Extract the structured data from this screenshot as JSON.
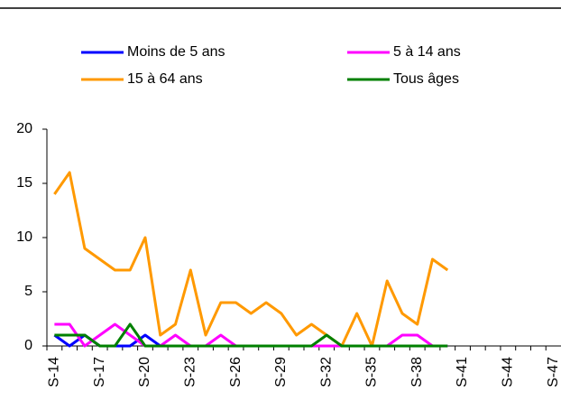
{
  "chart_data": {
    "type": "line",
    "categories": [
      "S-14",
      null,
      null,
      "S-17",
      null,
      null,
      "S-20",
      null,
      null,
      "S-23",
      null,
      null,
      "S-26",
      null,
      null,
      "S-29",
      null,
      null,
      "S-32",
      null,
      null,
      "S-35",
      null,
      null,
      "S-38",
      null,
      null,
      "S-41",
      null,
      null,
      "S-44",
      null,
      null,
      "S-47"
    ],
    "series": [
      {
        "name": "Moins de 5 ans",
        "color": "#0000ff",
        "values": [
          1,
          0,
          1,
          0,
          0,
          0,
          1,
          0,
          0,
          0,
          0,
          0,
          0,
          0,
          0,
          0,
          0,
          0,
          0,
          0,
          0,
          0,
          0,
          0,
          0,
          0,
          0,
          null,
          null,
          null,
          null,
          null,
          null,
          null
        ]
      },
      {
        "name": "5 à 14 ans",
        "color": "#ff00ff",
        "values": [
          2,
          2,
          0,
          1,
          2,
          1,
          0,
          0,
          1,
          0,
          0,
          1,
          0,
          0,
          0,
          0,
          0,
          0,
          0,
          0,
          0,
          0,
          0,
          1,
          1,
          0,
          0,
          null,
          null,
          null,
          null,
          null,
          null,
          null
        ]
      },
      {
        "name": "15 à 64 ans",
        "color": "#ff9900",
        "values": [
          14,
          16,
          9,
          8,
          7,
          7,
          10,
          1,
          2,
          7,
          1,
          4,
          4,
          3,
          4,
          3,
          1,
          2,
          1,
          0,
          3,
          0,
          6,
          3,
          2,
          8,
          7,
          null,
          null,
          null,
          null,
          null,
          null,
          null
        ]
      },
      {
        "name": "Tous âges",
        "color": "#008000",
        "values": [
          1,
          1,
          1,
          0,
          0,
          2,
          0,
          0,
          0,
          0,
          0,
          0,
          0,
          0,
          0,
          0,
          0,
          0,
          1,
          0,
          0,
          0,
          0,
          0,
          0,
          0,
          0,
          null,
          null,
          null,
          null,
          null,
          null,
          null
        ]
      }
    ],
    "ylim": [
      0,
      20
    ],
    "yticks": [
      0,
      5,
      10,
      15,
      20
    ]
  }
}
